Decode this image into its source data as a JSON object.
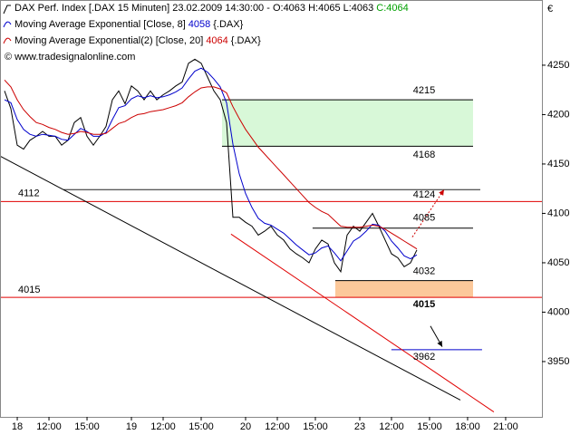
{
  "chart_data": {
    "type": "line",
    "title": "DAX Perf. Index [.DAX  15 Minuten] 23.02.2009 14:30:00 - O:4063 H:4065 L:4063",
    "close_label": "C:4064",
    "close_color": "#00a000",
    "copyright": "© www.tradesignalonline.com",
    "currency": "€",
    "xlim": [
      0.14,
      42.86
    ],
    "ylim": [
      3894,
      4316
    ],
    "yticks": [
      3950,
      4000,
      4050,
      4100,
      4150,
      4200,
      4250
    ],
    "xticks": [
      {
        "value": 1.5,
        "label": "18"
      },
      {
        "value": 4,
        "label": "12:00"
      },
      {
        "value": 7,
        "label": "15:00"
      },
      {
        "value": 10.5,
        "label": "19"
      },
      {
        "value": 13,
        "label": "12:00"
      },
      {
        "value": 16,
        "label": "15:00"
      },
      {
        "value": 19.5,
        "label": "20"
      },
      {
        "value": 22,
        "label": "12:00"
      },
      {
        "value": 25,
        "label": "15:00"
      },
      {
        "value": 28.5,
        "label": "23"
      },
      {
        "value": 31,
        "label": "12:00"
      },
      {
        "value": 34,
        "label": "15:00"
      },
      {
        "value": 37,
        "label": "18:00"
      },
      {
        "value": 40,
        "label": "21:00"
      }
    ],
    "x": [
      0.5,
      1,
      1.5,
      2,
      2.5,
      3,
      3.5,
      4,
      4.5,
      5,
      5.5,
      6,
      6.5,
      7,
      7.5,
      8,
      8.5,
      9,
      9.5,
      10,
      10.5,
      11,
      11.5,
      12,
      12.5,
      13,
      13.5,
      14,
      14.5,
      15,
      15.5,
      16,
      16.5,
      17,
      17.5,
      18,
      18.5,
      19,
      19.5,
      20,
      20.5,
      21,
      21.5,
      22,
      22.5,
      23,
      23.5,
      24,
      24.5,
      25,
      25.5,
      26,
      26.5,
      27,
      27.5,
      28,
      28.5,
      29,
      29.5,
      30,
      30.5,
      31,
      31.5,
      32,
      32.5,
      33
    ],
    "series": [
      {
        "color": "#000000",
        "values": [
          4224,
          4206,
          4169,
          4165,
          4174,
          4178,
          4183,
          4178,
          4178,
          4169,
          4174,
          4192,
          4197,
          4178,
          4169,
          4178,
          4188,
          4215,
          4224,
          4211,
          4229,
          4224,
          4215,
          4224,
          4215,
          4220,
          4224,
          4229,
          4233,
          4252,
          4256,
          4252,
          4238,
          4224,
          4215,
          4192,
          4096,
          4096,
          4091,
          4087,
          4078,
          4082,
          4087,
          4078,
          4073,
          4064,
          4059,
          4055,
          4050,
          4064,
          4073,
          4069,
          4050,
          4041,
          4078,
          4087,
          4082,
          4091,
          4100,
          4087,
          4073,
          4059,
          4055,
          4046,
          4050,
          4063
        ]
      },
      {
        "name": "Moving Average Exponential [Close, 8]",
        "last": 4058,
        "symbol": "{.DAX}",
        "color": "#0000cc",
        "values": [
          4215,
          4212,
          4195,
          4185,
          4180,
          4178,
          4180,
          4179,
          4178,
          4175,
          4174,
          4180,
          4186,
          4183,
          4178,
          4178,
          4182,
          4195,
          4207,
          4209,
          4216,
          4219,
          4217,
          4219,
          4217,
          4218,
          4220,
          4223,
          4227,
          4236,
          4244,
          4247,
          4243,
          4236,
          4228,
          4212,
          4170,
          4140,
          4120,
          4106,
          4095,
          4090,
          4088,
          4084,
          4080,
          4074,
          4068,
          4063,
          4058,
          4060,
          4065,
          4067,
          4060,
          4052,
          4062,
          4072,
          4076,
          4082,
          4089,
          4088,
          4082,
          4072,
          4065,
          4057,
          4054,
          4058
        ]
      },
      {
        "name": "Moving Average Exponential(2) [Close, 20]",
        "last": 4064,
        "symbol": "{.DAX}",
        "color": "#cc0000",
        "values": [
          4235,
          4228,
          4215,
          4205,
          4198,
          4192,
          4190,
          4187,
          4185,
          4182,
          4180,
          4181,
          4183,
          4182,
          4180,
          4180,
          4181,
          4186,
          4191,
          4193,
          4197,
          4200,
          4201,
          4203,
          4204,
          4205,
          4207,
          4209,
          4212,
          4218,
          4223,
          4227,
          4228,
          4228,
          4226,
          4222,
          4208,
          4196,
          4185,
          4176,
          4167,
          4160,
          4153,
          4146,
          4139,
          4132,
          4125,
          4118,
          4111,
          4106,
          4102,
          4099,
          4093,
          4087,
          4086,
          4086,
          4086,
          4087,
          4088,
          4087,
          4084,
          4080,
          4076,
          4072,
          4068,
          4064
        ]
      }
    ],
    "zones": [
      {
        "ylim": [
          4168,
          4215
        ],
        "x": [
          17.64,
          37.43
        ],
        "color": "#d8f8d8"
      },
      {
        "ylim": [
          4015,
          4032
        ],
        "x": [
          26.57,
          37.43
        ],
        "color": "#fcc89a"
      }
    ],
    "hlines": [
      {
        "value": 4215,
        "x": [
          17.64,
          37.43
        ],
        "color": "#000000",
        "label_color": "#000000"
      },
      {
        "value": 4168,
        "x": [
          17.64,
          37.43
        ],
        "color": "#000000",
        "label_color": "#000000"
      },
      {
        "value": 4124,
        "x": [
          5.14,
          38.0
        ],
        "color": "#222222",
        "label_color": "#e00000"
      },
      {
        "value": 4112,
        "x": [
          0.14,
          42.86
        ],
        "color": "#e00000",
        "label_color": "#e00000"
      },
      {
        "value": 4085,
        "x": [
          24.78,
          37.43
        ],
        "color": "#000000",
        "label_color": "#000000"
      },
      {
        "value": 4032,
        "x": [
          26.57,
          37.43
        ],
        "color": "#000000",
        "label_color": "#000000"
      },
      {
        "value": 4015,
        "x": [
          0.14,
          42.86
        ],
        "color": "#e00000",
        "label_color": "#e00000"
      },
      {
        "value": 3962,
        "x": [
          30.99,
          38.14
        ],
        "color": "#0000cc",
        "label_color": "#0000cc"
      }
    ],
    "trendlines": [
      {
        "x": [
          0.14,
          36.43
        ],
        "y": [
          4158,
          3911
        ],
        "color": "#000000"
      },
      {
        "x": [
          18.35,
          39.07
        ],
        "y": [
          4079,
          3899
        ],
        "color": "#e00000"
      }
    ],
    "arrows": [
      {
        "x": [
          32.64,
          35.14
        ],
        "y": [
          4076,
          4124
        ],
        "color": "#cc0000",
        "dotted": true
      },
      {
        "x": [
          34.07,
          35.0
        ],
        "y": [
          3986,
          3965
        ],
        "color": "#000000",
        "dotted": false
      }
    ]
  }
}
